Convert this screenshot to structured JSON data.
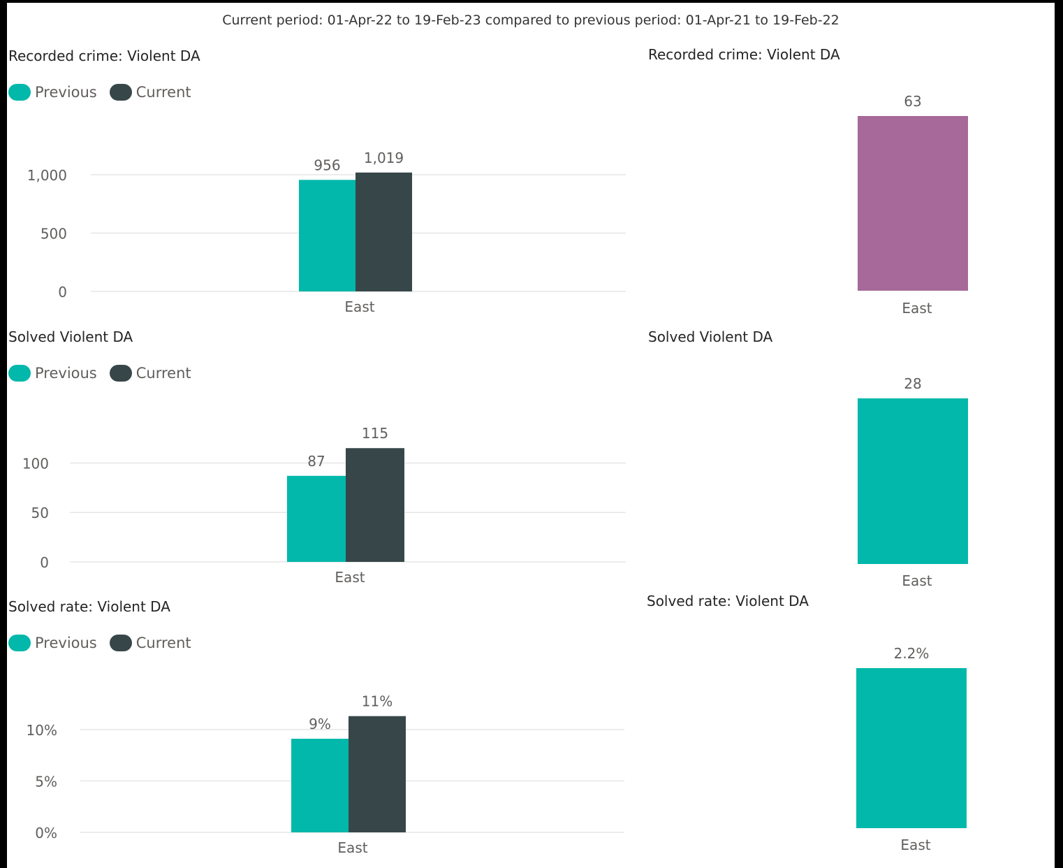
{
  "header": "Current period: 01-Apr-22 to 19-Feb-23 compared to previous period: 01-Apr-21 to 19-Feb-22",
  "colors": {
    "previous": "#01B8AA",
    "current": "#374649",
    "purple": "#A66999",
    "axis_text": "#605e5c",
    "gridline": "#e6e6e6"
  },
  "legend": {
    "previous": "Previous",
    "current": "Current"
  },
  "chart_data": [
    {
      "type": "bar",
      "title": "Recorded crime: Violent DA",
      "categories": [
        "East"
      ],
      "series": [
        {
          "name": "Previous",
          "values": [
            956
          ],
          "labels": [
            "956"
          ]
        },
        {
          "name": "Current",
          "values": [
            1019
          ],
          "labels": [
            "1,019"
          ]
        }
      ],
      "ylim": [
        0,
        1150
      ],
      "yticks": [
        0,
        500,
        1000
      ],
      "ytick_labels": [
        "0",
        "500",
        "1,000"
      ],
      "grid": true,
      "legend": "top-left"
    },
    {
      "type": "bar",
      "title": "Recorded crime: Violent DA",
      "categories": [
        "East"
      ],
      "values": [
        63
      ],
      "labels": [
        "63"
      ],
      "color": "purple",
      "ylim": [
        0,
        63
      ],
      "grid": false
    },
    {
      "type": "bar",
      "title": "Solved Violent DA",
      "categories": [
        "East"
      ],
      "series": [
        {
          "name": "Previous",
          "values": [
            87
          ],
          "labels": [
            "87"
          ]
        },
        {
          "name": "Current",
          "values": [
            115
          ],
          "labels": [
            "115"
          ]
        }
      ],
      "ylim": [
        0,
        130
      ],
      "yticks": [
        0,
        50,
        100
      ],
      "ytick_labels": [
        "0",
        "50",
        "100"
      ],
      "grid": true,
      "legend": "top-left"
    },
    {
      "type": "bar",
      "title": "Solved Violent DA",
      "categories": [
        "East"
      ],
      "values": [
        28
      ],
      "labels": [
        "28"
      ],
      "color": "previous",
      "ylim": [
        0,
        28
      ],
      "grid": false
    },
    {
      "type": "bar",
      "title": "Solved rate: Violent DA",
      "categories": [
        "East"
      ],
      "series": [
        {
          "name": "Previous",
          "values": [
            0.091
          ],
          "labels": [
            "9%"
          ]
        },
        {
          "name": "Current",
          "values": [
            0.113
          ],
          "labels": [
            "11%"
          ]
        }
      ],
      "ylim": [
        0,
        0.125
      ],
      "yticks": [
        0,
        0.05,
        0.1
      ],
      "ytick_labels": [
        "0%",
        "5%",
        "10%"
      ],
      "grid": true,
      "legend": "top-left"
    },
    {
      "type": "bar",
      "title": "Solved rate: Violent DA",
      "categories": [
        "East"
      ],
      "values": [
        0.022
      ],
      "labels": [
        "2.2%"
      ],
      "color": "previous",
      "ylim": [
        0,
        0.022
      ],
      "grid": false
    }
  ]
}
